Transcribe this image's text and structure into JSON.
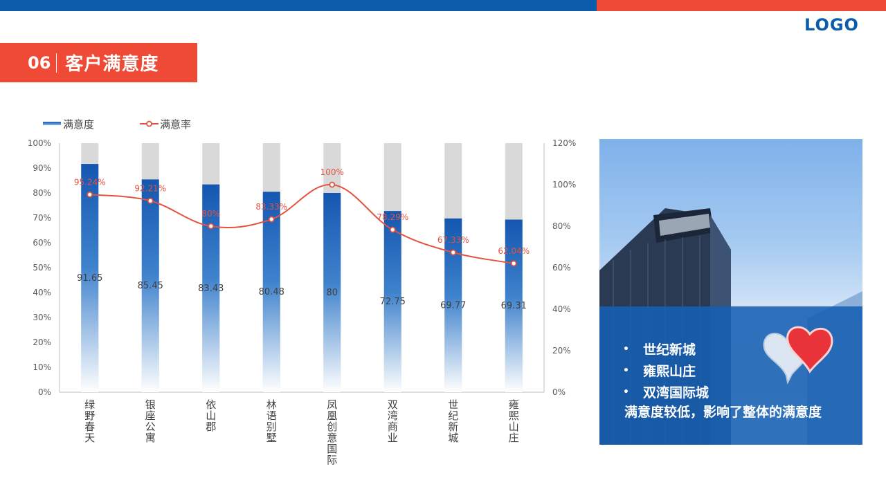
{
  "header": {
    "logo": "LOGO",
    "section_number": "06",
    "section_title": "客户满意度"
  },
  "colors": {
    "brand_blue": "#0b5cab",
    "brand_red": "#ef4a35",
    "bar_track": "#d9d9d9",
    "line": "#e4533f"
  },
  "chart_data": {
    "type": "bar",
    "categories": [
      "绿野春天",
      "银座公寓",
      "依山郡",
      "林语别墅",
      "凤凰创意国际",
      "双湾商业",
      "世纪新城",
      "雍熙山庄"
    ],
    "series": [
      {
        "name": "满意度",
        "type": "bar",
        "axis": "left",
        "values": [
          91.65,
          85.45,
          83.43,
          80.48,
          80,
          72.75,
          69.77,
          69.31
        ],
        "labels": [
          "91.65",
          "85.45",
          "83.43",
          "80.48",
          "80",
          "72.75",
          "69.77",
          "69.31"
        ]
      },
      {
        "name": "满意率",
        "type": "line",
        "axis": "right",
        "values": [
          95.24,
          92.21,
          80,
          83.33,
          100,
          78.29,
          67.33,
          62.04
        ],
        "labels": [
          "95.24%",
          "92.21%",
          "80%",
          "83.33%",
          "100%",
          "78.29%",
          "67.33%",
          "62.04%"
        ]
      }
    ],
    "y_left": {
      "range": [
        0,
        100
      ],
      "ticks": [
        "0%",
        "10%",
        "20%",
        "30%",
        "40%",
        "50%",
        "60%",
        "70%",
        "80%",
        "90%",
        "100%"
      ]
    },
    "y_right": {
      "range": [
        0,
        120
      ],
      "ticks": [
        "0%",
        "20%",
        "40%",
        "60%",
        "80%",
        "100%",
        "120%"
      ]
    },
    "legend": "top-left"
  },
  "panel": {
    "bullets": [
      "世纪新城",
      "雍熙山庄",
      "双湾国际城"
    ],
    "bullet_mark": "•",
    "summary": "满意度较低，影响了整体的满意度"
  }
}
